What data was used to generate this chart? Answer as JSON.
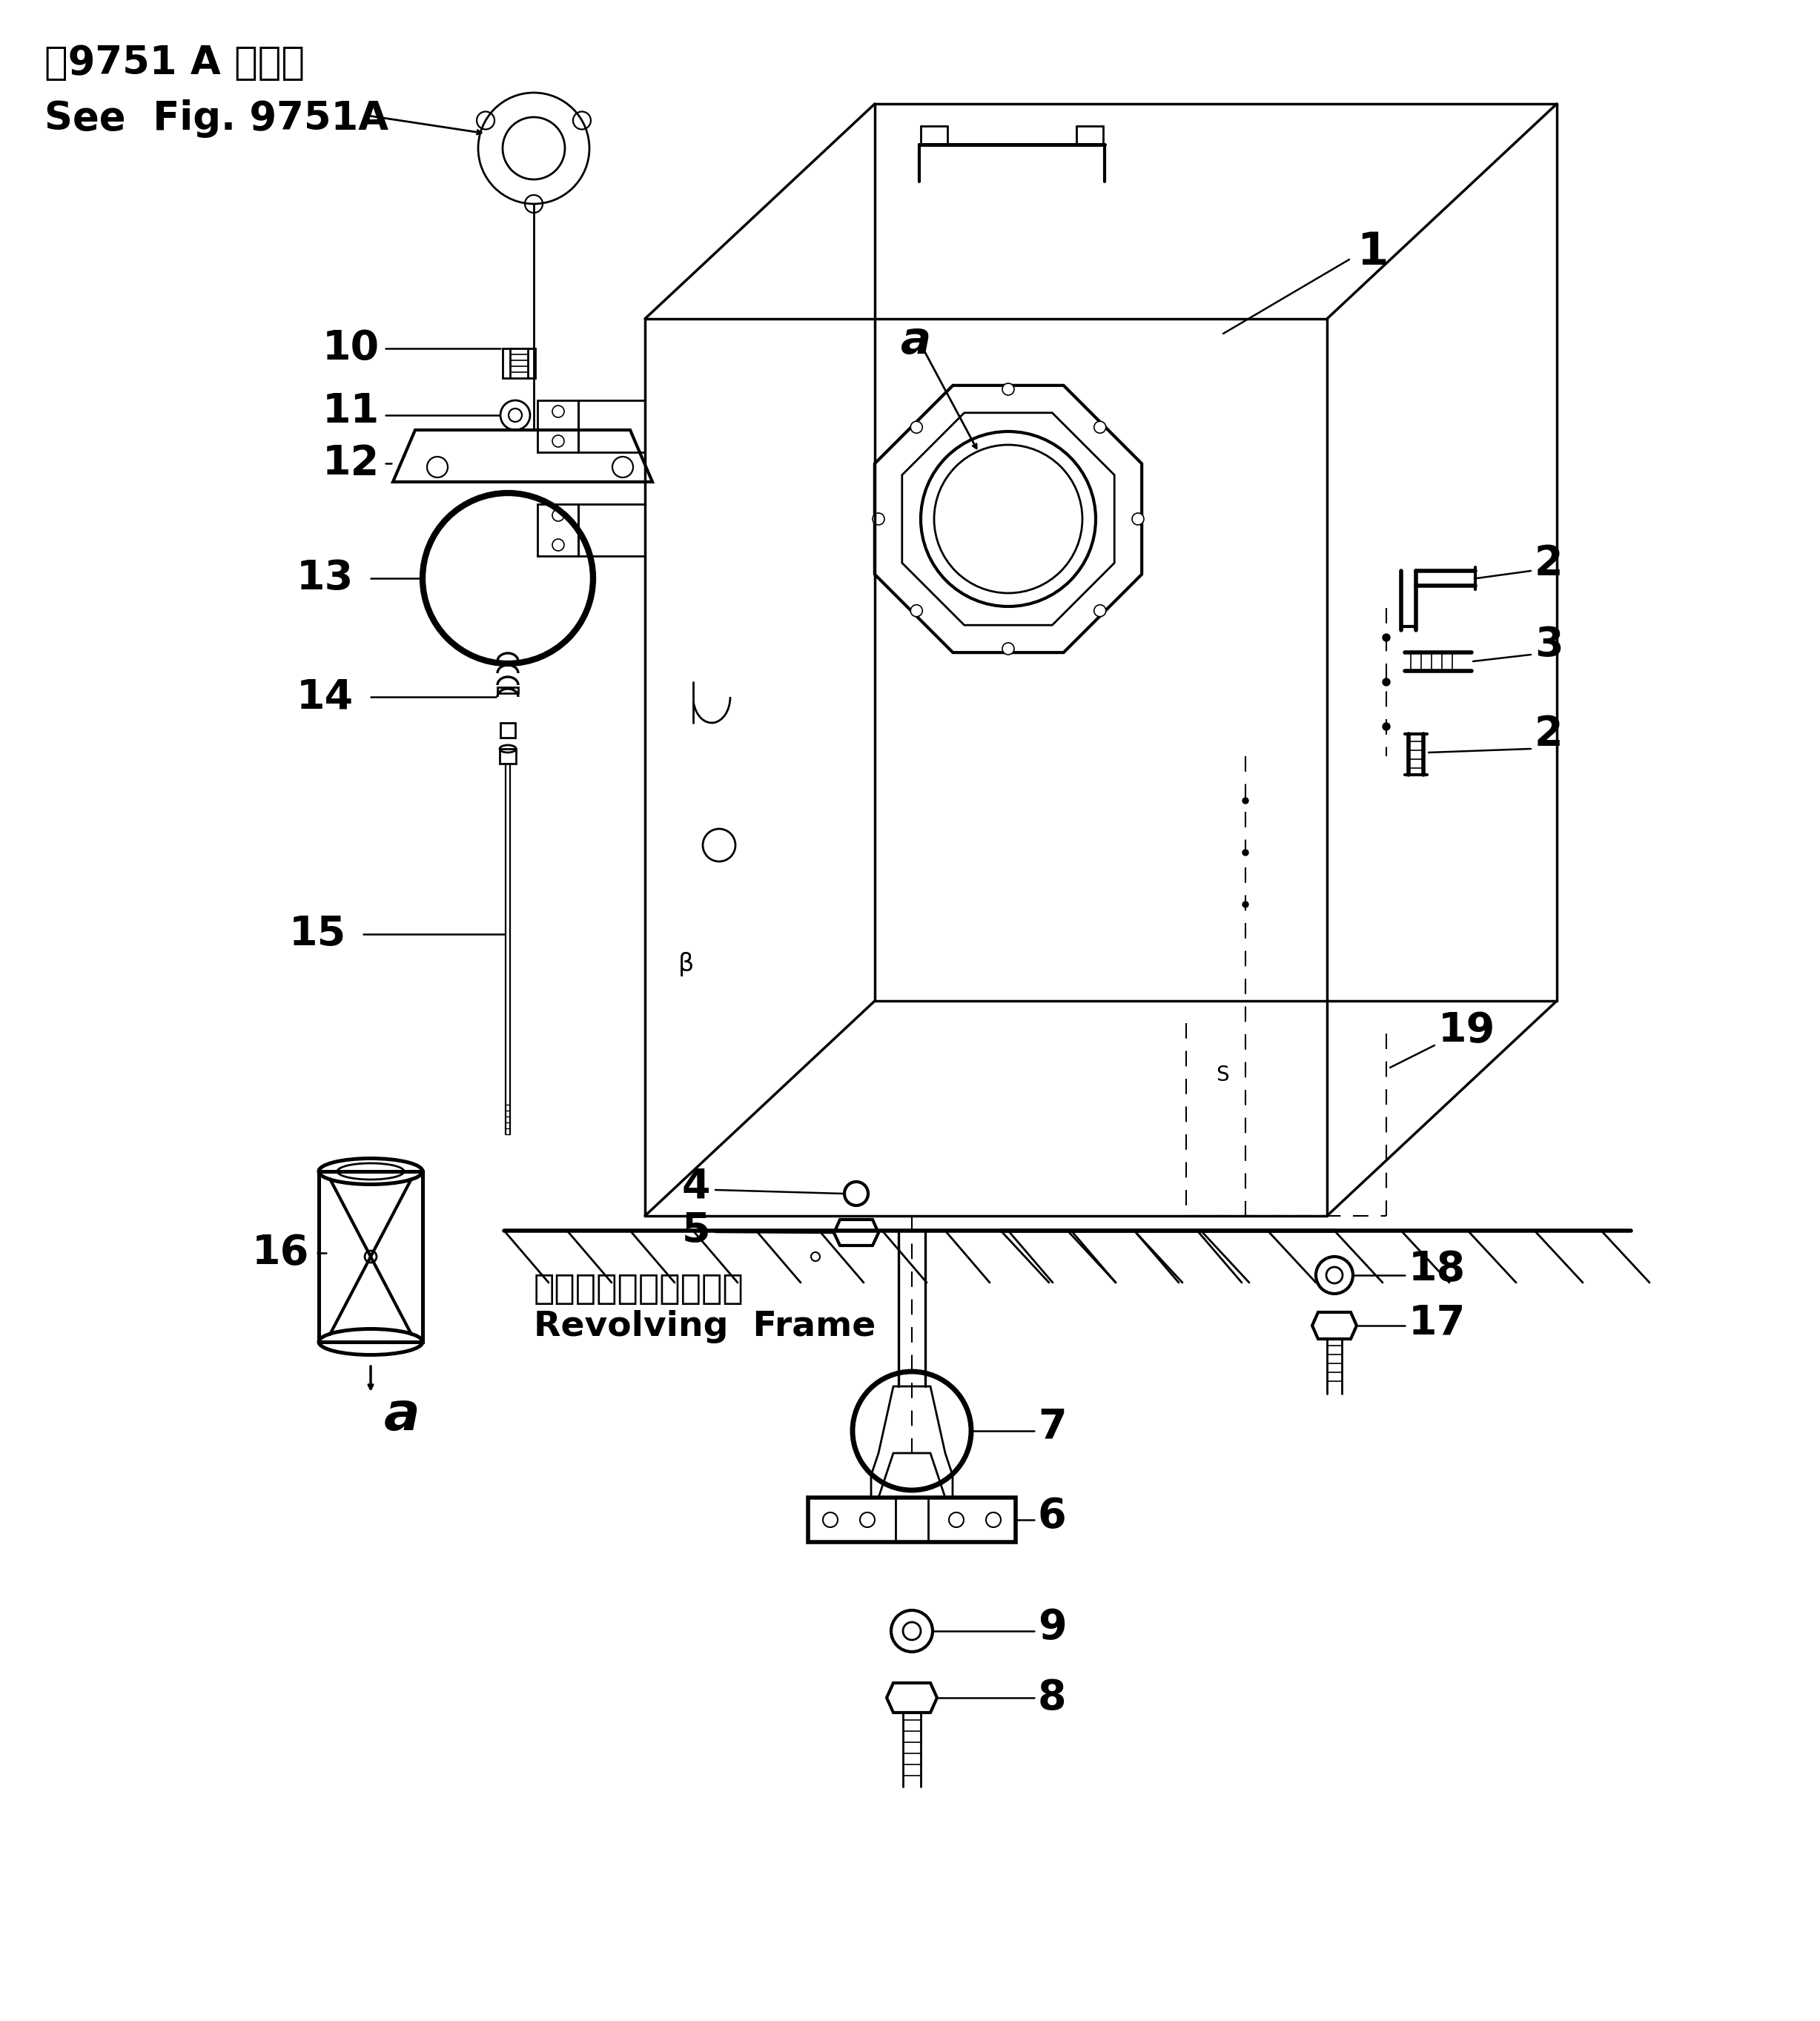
{
  "bg_color": "#ffffff",
  "fig_width": 24.55,
  "fig_height": 27.26,
  "annotation_ref_line1": "第9751 A 図参照",
  "annotation_ref_line2": "See  Fig. 9751A",
  "revolving_frame_line1": "レボルビングフレーム",
  "revolving_frame_line2": "Revolving  Frame",
  "label_a_top": "a",
  "label_a_bottom": "a"
}
